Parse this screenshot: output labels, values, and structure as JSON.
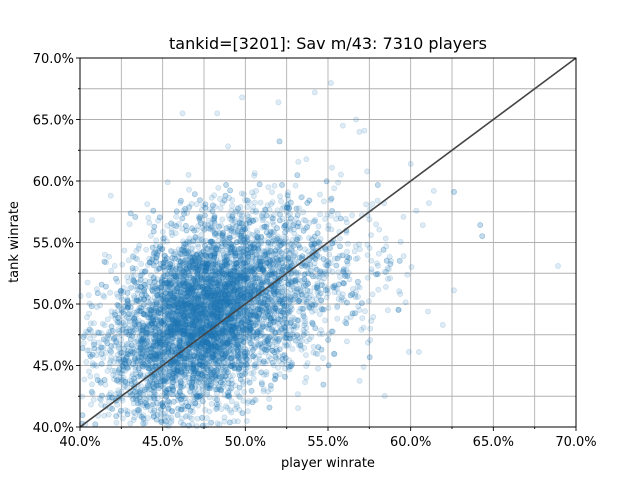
{
  "chart_data": {
    "type": "scatter",
    "title": "tankid=[3201]: Sav m/43: 7310 players",
    "xlabel": "player winrate",
    "ylabel": "tank winrate",
    "xlim": [
      0.4,
      0.7
    ],
    "ylim": [
      0.4,
      0.7
    ],
    "x_ticks": [
      0.4,
      0.45,
      0.5,
      0.55,
      0.6,
      0.65,
      0.7
    ],
    "y_ticks": [
      0.4,
      0.45,
      0.5,
      0.55,
      0.6,
      0.65,
      0.7
    ],
    "x_tick_labels": [
      "40.0%",
      "45.0%",
      "50.0%",
      "55.0%",
      "60.0%",
      "65.0%",
      "70.0%"
    ],
    "y_tick_labels": [
      "40.0%",
      "45.0%",
      "50.0%",
      "55.0%",
      "60.0%",
      "65.0%",
      "70.0%"
    ],
    "grid": true,
    "point_color": "#1f77b4",
    "point_opacity": 0.15,
    "point_count": 7310,
    "reference_line": {
      "from": [
        0.4,
        0.4
      ],
      "to": [
        0.7,
        0.7
      ],
      "color": "#444444"
    },
    "distribution": {
      "center": [
        0.478,
        0.492
      ],
      "std": [
        0.03,
        0.04
      ],
      "correlation": 0.42
    },
    "outliers": [
      [
        0.611,
        0.582
      ],
      [
        0.614,
        0.592
      ],
      [
        0.6,
        0.614
      ],
      [
        0.572,
        0.641
      ],
      [
        0.567,
        0.65
      ],
      [
        0.584,
        0.582
      ],
      [
        0.605,
        0.461
      ],
      [
        0.576,
        0.556
      ],
      [
        0.542,
        0.672
      ],
      [
        0.52,
        0.664
      ],
      [
        0.559,
        0.645
      ],
      [
        0.498,
        0.668
      ],
      [
        0.462,
        0.655
      ],
      [
        0.483,
        0.655
      ],
      [
        0.569,
        0.64
      ],
      [
        0.586,
        0.529
      ],
      [
        0.559,
        0.508
      ],
      [
        0.418,
        0.424
      ],
      [
        0.425,
        0.471
      ],
      [
        0.421,
        0.493
      ],
      [
        0.425,
        0.511
      ],
      [
        0.427,
        0.453
      ],
      [
        0.432,
        0.539
      ],
      [
        0.43,
        0.565
      ],
      [
        0.442,
        0.566
      ],
      [
        0.453,
        0.599
      ],
      [
        0.412,
        0.423
      ],
      [
        0.448,
        0.473
      ]
    ]
  }
}
